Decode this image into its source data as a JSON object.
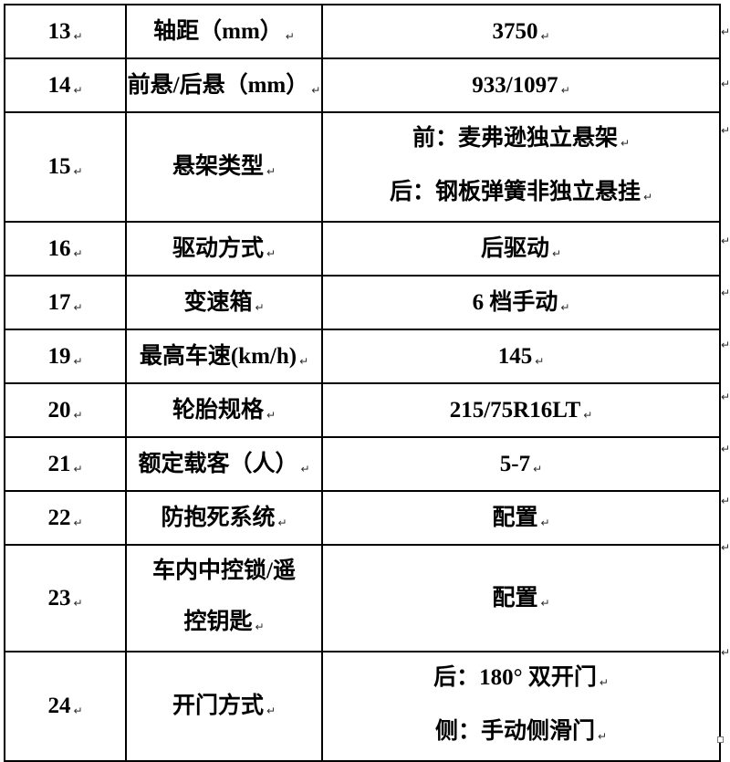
{
  "document": {
    "paragraph_mark": "↵",
    "colors": {
      "border": "#000000",
      "text": "#000000",
      "background": "#ffffff"
    },
    "table": {
      "columns": [
        "number",
        "label",
        "value"
      ],
      "rows": [
        {
          "num": "13",
          "label": [
            "轴距（mm）"
          ],
          "value": [
            "3750"
          ],
          "tall": false
        },
        {
          "num": "14",
          "label": [
            "前悬/后悬（mm）"
          ],
          "value": [
            "933/1097"
          ],
          "tall": false
        },
        {
          "num": "15",
          "label": [
            "悬架类型"
          ],
          "value": [
            "前：麦弗逊独立悬架",
            "后：钢板弹簧非独立悬挂"
          ],
          "tall": true
        },
        {
          "num": "16",
          "label": [
            "驱动方式"
          ],
          "value": [
            "后驱动"
          ],
          "tall": false
        },
        {
          "num": "17",
          "label": [
            "变速箱"
          ],
          "value": [
            "6 档手动"
          ],
          "tall": false
        },
        {
          "num": "19",
          "label": [
            "最高车速(km/h)"
          ],
          "value": [
            "145"
          ],
          "tall": false
        },
        {
          "num": "20",
          "label": [
            "轮胎规格"
          ],
          "value": [
            "215/75R16LT"
          ],
          "tall": false
        },
        {
          "num": "21",
          "label": [
            "额定载客（人）"
          ],
          "value": [
            "5-7"
          ],
          "tall": false
        },
        {
          "num": "22",
          "label": [
            "防抱死系统"
          ],
          "value": [
            "配置"
          ],
          "tall": false
        },
        {
          "num": "23",
          "label": [
            "车内中控锁/遥",
            "控钥匙"
          ],
          "value": [
            "配置"
          ],
          "tall": true
        },
        {
          "num": "24",
          "label": [
            "开门方式"
          ],
          "value": [
            "后：180° 双开门",
            "侧：手动侧滑门"
          ],
          "tall": true
        }
      ]
    }
  }
}
